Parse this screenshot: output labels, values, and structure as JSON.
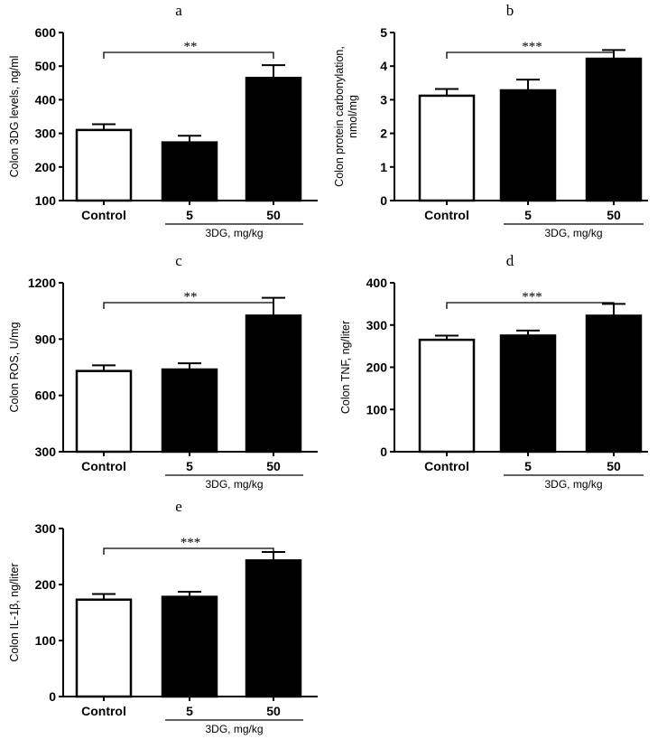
{
  "chart_data": [
    {
      "type": "bar",
      "panel": "a",
      "categories": [
        "Control",
        "5",
        "50"
      ],
      "group_label": "3DG, mg/kg",
      "ylabel": [
        "Colon 3DG levels, ng/ml"
      ],
      "ylim": [
        100,
        600
      ],
      "yticks": [
        100,
        200,
        300,
        400,
        500,
        600
      ],
      "values": [
        310,
        273,
        465
      ],
      "errors": [
        17,
        20,
        38
      ],
      "fills": [
        "#ffffff",
        "#000000",
        "#000000"
      ],
      "significance": {
        "from": "Control",
        "to": "50",
        "label": "**"
      }
    },
    {
      "type": "bar",
      "panel": "b",
      "categories": [
        "Control",
        "5",
        "50"
      ],
      "group_label": "3DG, mg/kg",
      "ylabel": [
        "Colon protein carbonylation,",
        "nmol/mg"
      ],
      "ylim": [
        0,
        5
      ],
      "yticks": [
        0,
        1,
        2,
        3,
        4,
        5
      ],
      "values": [
        3.12,
        3.28,
        4.22
      ],
      "errors": [
        0.2,
        0.32,
        0.26
      ],
      "fills": [
        "#ffffff",
        "#000000",
        "#000000"
      ],
      "significance": {
        "from": "Control",
        "to": "50",
        "label": "***"
      }
    },
    {
      "type": "bar",
      "panel": "c",
      "categories": [
        "Control",
        "5",
        "50"
      ],
      "group_label": "3DG, mg/kg",
      "ylabel": [
        "Colon ROS, U/mg"
      ],
      "ylim": [
        300,
        1200
      ],
      "yticks": [
        300,
        600,
        900,
        1200
      ],
      "values": [
        730,
        738,
        1025
      ],
      "errors": [
        30,
        33,
        95
      ],
      "fills": [
        "#ffffff",
        "#000000",
        "#000000"
      ],
      "significance": {
        "from": "Control",
        "to": "50",
        "label": "**"
      }
    },
    {
      "type": "bar",
      "panel": "d",
      "categories": [
        "Control",
        "5",
        "50"
      ],
      "group_label": "3DG, mg/kg",
      "ylabel": [
        "Colon TNF, ng/liter"
      ],
      "ylim": [
        0,
        400
      ],
      "yticks": [
        0,
        100,
        200,
        300,
        400
      ],
      "values": [
        265,
        275,
        322
      ],
      "errors": [
        10,
        12,
        28
      ],
      "fills": [
        "#ffffff",
        "#000000",
        "#000000"
      ],
      "significance": {
        "from": "Control",
        "to": "50",
        "label": "***"
      }
    },
    {
      "type": "bar",
      "panel": "e",
      "categories": [
        "Control",
        "5",
        "50"
      ],
      "group_label": "3DG, mg/kg",
      "ylabel": [
        "Colon IL-1β, ng/liter"
      ],
      "ylim": [
        0,
        300
      ],
      "yticks": [
        0,
        100,
        200,
        300
      ],
      "values": [
        173,
        178,
        243
      ],
      "errors": [
        10,
        9,
        15
      ],
      "fills": [
        "#ffffff",
        "#000000",
        "#000000"
      ],
      "significance": {
        "from": "Control",
        "to": "50",
        "label": "***"
      }
    }
  ]
}
